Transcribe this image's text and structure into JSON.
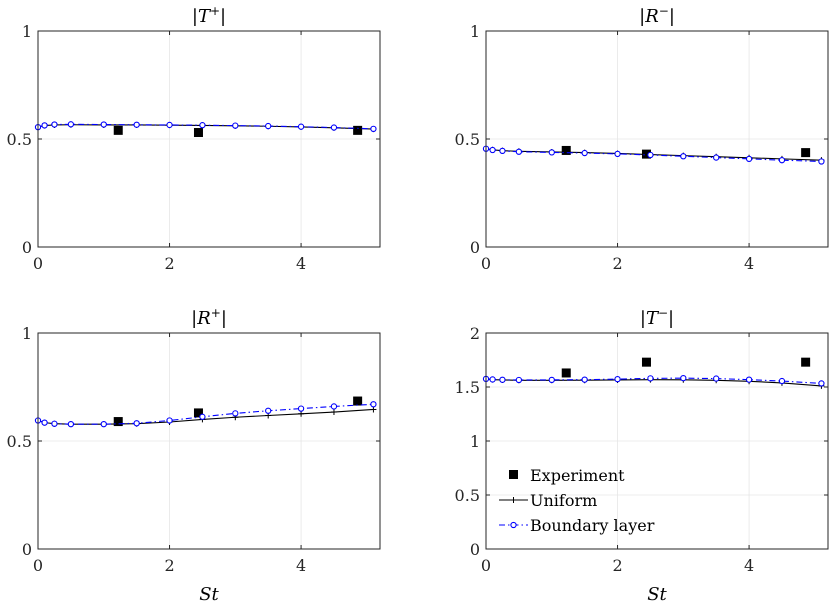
{
  "chart_data": [
    {
      "type": "line",
      "title": "|T+|",
      "title_parts": {
        "pre": "|",
        "base": "T",
        "sup": "+",
        "post": "|"
      },
      "xlabel": "",
      "xlim": [
        0,
        5.2
      ],
      "ylim": [
        0,
        1
      ],
      "xticks": [
        0,
        2,
        4
      ],
      "yticks": [
        0,
        0.5,
        1
      ],
      "xtick_labels": [
        "0",
        "2",
        "4"
      ],
      "ytick_labels": [
        "0",
        "0.5",
        "1"
      ],
      "grid": true,
      "series": [
        {
          "name": "Experiment",
          "style": "square-marker",
          "color": "#000000",
          "x": [
            1.22,
            2.44,
            4.86
          ],
          "y": [
            0.54,
            0.53,
            0.54
          ]
        },
        {
          "name": "Uniform",
          "style": "line-plus",
          "color": "#000000",
          "x": [
            0,
            0.1,
            0.25,
            0.5,
            1.0,
            1.5,
            2.0,
            2.5,
            3.0,
            3.5,
            4.0,
            4.5,
            5.1
          ],
          "y": [
            0.555,
            0.562,
            0.565,
            0.566,
            0.565,
            0.565,
            0.564,
            0.563,
            0.561,
            0.559,
            0.556,
            0.552,
            0.546
          ]
        },
        {
          "name": "Boundary layer",
          "style": "dashdot-circle",
          "color": "#0000ff",
          "x": [
            0,
            0.1,
            0.25,
            0.5,
            1.0,
            1.5,
            2.0,
            2.5,
            3.0,
            3.5,
            4.0,
            4.5,
            5.1
          ],
          "y": [
            0.555,
            0.563,
            0.567,
            0.568,
            0.567,
            0.566,
            0.565,
            0.564,
            0.562,
            0.56,
            0.557,
            0.553,
            0.547
          ]
        }
      ]
    },
    {
      "type": "line",
      "title": "|R−|",
      "title_parts": {
        "pre": "|",
        "base": "R",
        "sup": "−",
        "post": "|"
      },
      "xlabel": "",
      "xlim": [
        0,
        5.2
      ],
      "ylim": [
        0,
        1
      ],
      "xticks": [
        0,
        2,
        4
      ],
      "yticks": [
        0,
        0.5,
        1
      ],
      "xtick_labels": [
        "0",
        "2",
        "4"
      ],
      "ytick_labels": [
        "0",
        "0.5",
        "1"
      ],
      "grid": true,
      "series": [
        {
          "name": "Experiment",
          "style": "square-marker",
          "color": "#000000",
          "x": [
            1.22,
            2.44,
            4.86
          ],
          "y": [
            0.447,
            0.43,
            0.437
          ]
        },
        {
          "name": "Uniform",
          "style": "line-plus",
          "color": "#000000",
          "x": [
            0,
            0.1,
            0.25,
            0.5,
            1.0,
            1.5,
            2.0,
            2.5,
            3.0,
            3.5,
            4.0,
            4.5,
            5.1
          ],
          "y": [
            0.455,
            0.45,
            0.446,
            0.443,
            0.44,
            0.437,
            0.433,
            0.428,
            0.423,
            0.418,
            0.413,
            0.408,
            0.402
          ]
        },
        {
          "name": "Boundary layer",
          "style": "dashdot-circle",
          "color": "#0000ff",
          "x": [
            0,
            0.1,
            0.25,
            0.5,
            1.0,
            1.5,
            2.0,
            2.5,
            3.0,
            3.5,
            4.0,
            4.5,
            5.1
          ],
          "y": [
            0.455,
            0.449,
            0.445,
            0.441,
            0.438,
            0.435,
            0.431,
            0.426,
            0.42,
            0.414,
            0.408,
            0.402,
            0.396
          ]
        }
      ]
    },
    {
      "type": "line",
      "title": "|R+|",
      "title_parts": {
        "pre": "|",
        "base": "R",
        "sup": "+",
        "post": "|"
      },
      "xlabel": "St",
      "xlim": [
        0,
        5.2
      ],
      "ylim": [
        0,
        1
      ],
      "xticks": [
        0,
        2,
        4
      ],
      "yticks": [
        0,
        0.5,
        1
      ],
      "xtick_labels": [
        "0",
        "2",
        "4"
      ],
      "ytick_labels": [
        "0",
        "0.5",
        "1"
      ],
      "grid": true,
      "series": [
        {
          "name": "Experiment",
          "style": "square-marker",
          "color": "#000000",
          "x": [
            1.22,
            2.44,
            4.86
          ],
          "y": [
            0.59,
            0.63,
            0.685
          ]
        },
        {
          "name": "Uniform",
          "style": "line-plus",
          "color": "#000000",
          "x": [
            0,
            0.1,
            0.25,
            0.5,
            1.0,
            1.5,
            2.0,
            2.5,
            3.0,
            3.5,
            4.0,
            4.5,
            5.1
          ],
          "y": [
            0.595,
            0.585,
            0.58,
            0.578,
            0.578,
            0.58,
            0.588,
            0.6,
            0.61,
            0.618,
            0.626,
            0.634,
            0.646
          ]
        },
        {
          "name": "Boundary layer",
          "style": "dashdot-circle",
          "color": "#0000ff",
          "x": [
            0,
            0.1,
            0.25,
            0.5,
            1.0,
            1.5,
            2.0,
            2.5,
            3.0,
            3.5,
            4.0,
            4.5,
            5.1
          ],
          "y": [
            0.595,
            0.585,
            0.58,
            0.578,
            0.578,
            0.582,
            0.595,
            0.612,
            0.628,
            0.64,
            0.65,
            0.66,
            0.67
          ]
        }
      ]
    },
    {
      "type": "line",
      "title": "|T−|",
      "title_parts": {
        "pre": "|",
        "base": "T",
        "sup": "−",
        "post": "|"
      },
      "xlabel": "St",
      "xlim": [
        0,
        5.2
      ],
      "ylim": [
        0,
        2
      ],
      "xticks": [
        0,
        2,
        4
      ],
      "yticks": [
        0,
        0.5,
        1,
        1.5,
        2
      ],
      "xtick_labels": [
        "0",
        "2",
        "4"
      ],
      "ytick_labels": [
        "0",
        "0.5",
        "1",
        "1.5",
        "2"
      ],
      "grid": true,
      "legend": "lower-left",
      "series": [
        {
          "name": "Experiment",
          "style": "square-marker",
          "color": "#000000",
          "x": [
            1.22,
            2.44,
            4.86
          ],
          "y": [
            1.63,
            1.73,
            1.73
          ]
        },
        {
          "name": "Uniform",
          "style": "line-plus",
          "color": "#000000",
          "x": [
            0,
            0.1,
            0.25,
            0.5,
            1.0,
            1.5,
            2.0,
            2.5,
            3.0,
            3.5,
            4.0,
            4.5,
            5.1
          ],
          "y": [
            1.575,
            1.568,
            1.565,
            1.562,
            1.562,
            1.563,
            1.565,
            1.568,
            1.567,
            1.562,
            1.553,
            1.538,
            1.51
          ]
        },
        {
          "name": "Boundary layer",
          "style": "dashdot-circle",
          "color": "#0000ff",
          "x": [
            0,
            0.1,
            0.25,
            0.5,
            1.0,
            1.5,
            2.0,
            2.5,
            3.0,
            3.5,
            4.0,
            4.5,
            5.1
          ],
          "y": [
            1.575,
            1.57,
            1.567,
            1.565,
            1.566,
            1.568,
            1.573,
            1.58,
            1.582,
            1.578,
            1.568,
            1.555,
            1.533
          ]
        }
      ]
    }
  ],
  "legend": {
    "items": [
      "Experiment",
      "Uniform",
      "Boundary layer"
    ]
  }
}
